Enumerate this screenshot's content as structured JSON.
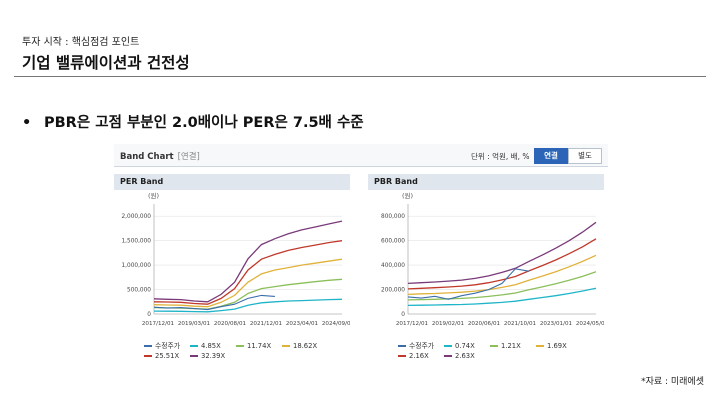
{
  "header": {
    "kicker": "투자 시작 : 핵심점검 포인트",
    "title": "기업 밸류에이션과 건전성"
  },
  "bullet": {
    "marker": "•",
    "text": "PBR은 고점 부분인 2.0배이나 PER은 7.5배 수준"
  },
  "source": "*자료 : 미래에셋",
  "panel": {
    "name": "Band Chart",
    "sub": "[연결]",
    "unit": "단위 : 억원, 배, %",
    "tab_annual": "연결",
    "tab_separate": "별도"
  },
  "colors": {
    "price": "#3b6ea8",
    "b1": "#1fb5c8",
    "b2": "#8bbf5a",
    "b3": "#e0b23a",
    "b4": "#c0392b",
    "b5": "#7a3a7a"
  },
  "chart_data": [
    {
      "type": "line",
      "title": "PER Band",
      "ylabel": "(원)",
      "ylim": [
        0,
        2250000
      ],
      "yticks": [
        "2,000,000",
        "1,500,000",
        "1,000,000",
        "500,000",
        "0"
      ],
      "ytick_values": [
        2000000,
        1500000,
        1000000,
        500000,
        0
      ],
      "xticks": [
        "2017/12/01",
        "2019/03/01",
        "2020/08/01",
        "2021/12/01",
        "2023/04/01",
        "2024/09/01"
      ],
      "x": [
        "2017/12",
        "2018/06",
        "2018/12",
        "2019/06",
        "2019/12",
        "2020/06",
        "2020/12",
        "2021/06",
        "2021/12",
        "2022/06",
        "2022/12",
        "2023/06",
        "2023/12",
        "2024/06",
        "2024/12"
      ],
      "series": [
        {
          "name": "4.85X",
          "values": [
            60000,
            58000,
            55000,
            50000,
            45000,
            70000,
            100000,
            180000,
            230000,
            250000,
            265000,
            275000,
            285000,
            295000,
            300000
          ]
        },
        {
          "name": "11.74X",
          "values": [
            130000,
            125000,
            120000,
            110000,
            100000,
            160000,
            240000,
            420000,
            520000,
            560000,
            600000,
            630000,
            660000,
            690000,
            710000
          ]
        },
        {
          "name": "18.62X",
          "values": [
            190000,
            185000,
            180000,
            160000,
            150000,
            240000,
            380000,
            650000,
            820000,
            900000,
            950000,
            1000000,
            1040000,
            1080000,
            1120000
          ]
        },
        {
          "name": "25.51X",
          "values": [
            250000,
            245000,
            240000,
            215000,
            200000,
            320000,
            520000,
            900000,
            1120000,
            1220000,
            1300000,
            1360000,
            1410000,
            1460000,
            1500000
          ]
        },
        {
          "name": "32.39X",
          "values": [
            310000,
            300000,
            295000,
            265000,
            250000,
            400000,
            650000,
            1130000,
            1420000,
            1540000,
            1640000,
            1720000,
            1780000,
            1840000,
            1900000
          ]
        }
      ],
      "price": {
        "name": "수정주가",
        "x_index": [
          0,
          1,
          2,
          3,
          4,
          5,
          6,
          7,
          8,
          9
        ],
        "values": [
          140000,
          120000,
          130000,
          110000,
          90000,
          150000,
          200000,
          320000,
          380000,
          360000
        ]
      }
    },
    {
      "type": "line",
      "title": "PBR Band",
      "ylabel": "(원)",
      "ylim": [
        0,
        900000
      ],
      "yticks": [
        "800,000",
        "600,000",
        "400,000",
        "200,000",
        "0"
      ],
      "ytick_values": [
        800000,
        600000,
        400000,
        200000,
        0
      ],
      "xticks": [
        "2017/12/01",
        "2019/02/01",
        "2020/06/01",
        "2021/10/01",
        "2023/01/01",
        "2024/05/01"
      ],
      "x": [
        "2017/12",
        "2018/06",
        "2018/12",
        "2019/06",
        "2019/12",
        "2020/06",
        "2020/12",
        "2021/06",
        "2021/12",
        "2022/06",
        "2022/12",
        "2023/06",
        "2023/12",
        "2024/06",
        "2024/12"
      ],
      "series": [
        {
          "name": "0.74X",
          "values": [
            70000,
            72000,
            74000,
            76000,
            78000,
            82000,
            88000,
            95000,
            105000,
            120000,
            135000,
            150000,
            168000,
            188000,
            210000
          ]
        },
        {
          "name": "1.21X",
          "values": [
            115000,
            118000,
            120000,
            124000,
            128000,
            134000,
            144000,
            156000,
            172000,
            198000,
            222000,
            248000,
            276000,
            308000,
            345000
          ]
        },
        {
          "name": "1.69X",
          "values": [
            160000,
            165000,
            168000,
            173000,
            178000,
            187000,
            200000,
            218000,
            240000,
            276000,
            310000,
            346000,
            386000,
            430000,
            480000
          ]
        },
        {
          "name": "2.16X",
          "values": [
            205000,
            210000,
            215000,
            221000,
            228000,
            239000,
            256000,
            279000,
            307000,
            353000,
            396000,
            442000,
            493000,
            550000,
            615000
          ]
        },
        {
          "name": "2.63X",
          "values": [
            250000,
            256000,
            262000,
            269000,
            277000,
            291000,
            312000,
            340000,
            374000,
            430000,
            482000,
            538000,
            600000,
            670000,
            750000
          ]
        }
      ],
      "price": {
        "name": "수정주가",
        "x_index": [
          0,
          1,
          2,
          3,
          4,
          5,
          6,
          7,
          8,
          9
        ],
        "values": [
          140000,
          130000,
          145000,
          120000,
          150000,
          170000,
          200000,
          250000,
          370000,
          350000
        ]
      }
    }
  ]
}
